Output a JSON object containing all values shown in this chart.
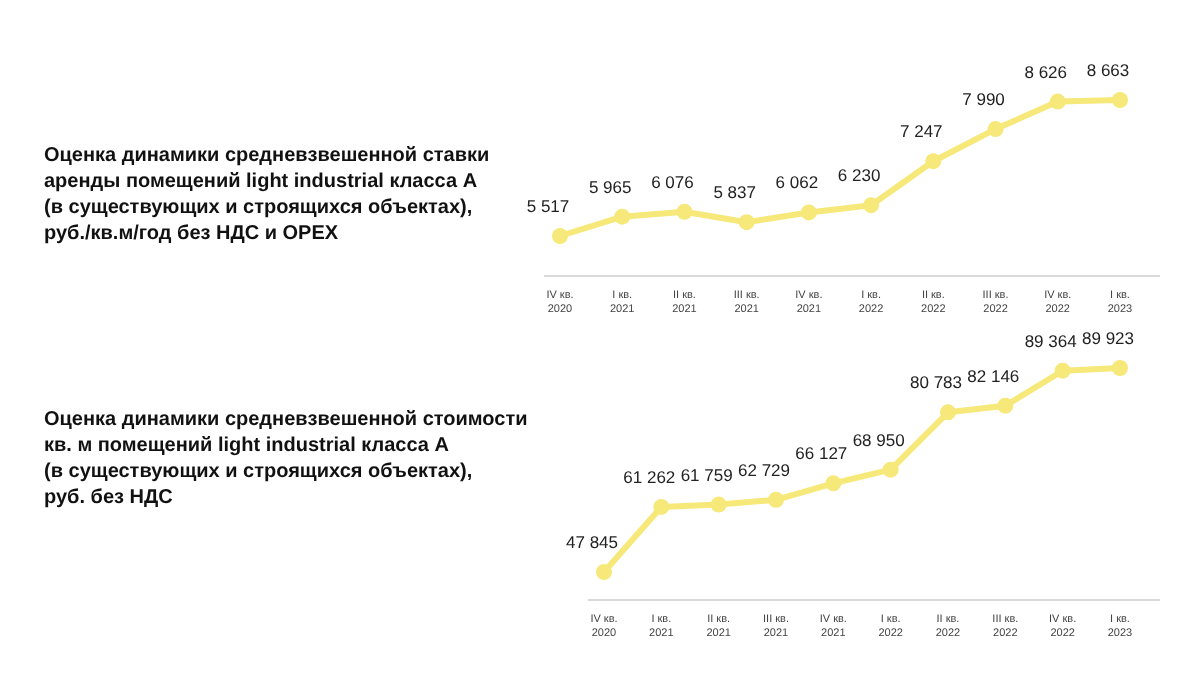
{
  "chart_data": [
    {
      "type": "line",
      "title": "Оценка динамики средневзвешенной ставки аренды помещений light industrial класса А (в существующих и строящихся объектах), руб./кв.м/год без НДС и OPEX",
      "categories": [
        "IV кв. 2020",
        "I кв. 2021",
        "II кв. 2021",
        "III кв. 2021",
        "IV кв. 2021",
        "I кв. 2022",
        "II кв. 2022",
        "III кв. 2022",
        "IV кв. 2022",
        "I кв. 2023"
      ],
      "series": [
        {
          "color": "#f7e87a",
          "values": [
            5517,
            5965,
            6076,
            5837,
            6062,
            6230,
            7247,
            7990,
            8626,
            8663
          ]
        }
      ],
      "data_labels": true,
      "marker": "circle"
    },
    {
      "type": "line",
      "title": "Оценка динамики средневзвешенной стоимости кв. м помещений light industrial класса А (в существующих и строящихся объектах), руб. без НДС",
      "categories": [
        "IV кв. 2020",
        "I кв. 2021",
        "II кв. 2021",
        "III кв. 2021",
        "IV кв. 2021",
        "I кв. 2022",
        "II кв. 2022",
        "III кв. 2022",
        "IV кв. 2022",
        "I кв. 2023"
      ],
      "series": [
        {
          "color": "#f7e87a",
          "values": [
            47845,
            61262,
            61759,
            62729,
            66127,
            68950,
            80783,
            82146,
            89364,
            89923
          ]
        }
      ],
      "data_labels": true,
      "marker": "circle"
    }
  ]
}
